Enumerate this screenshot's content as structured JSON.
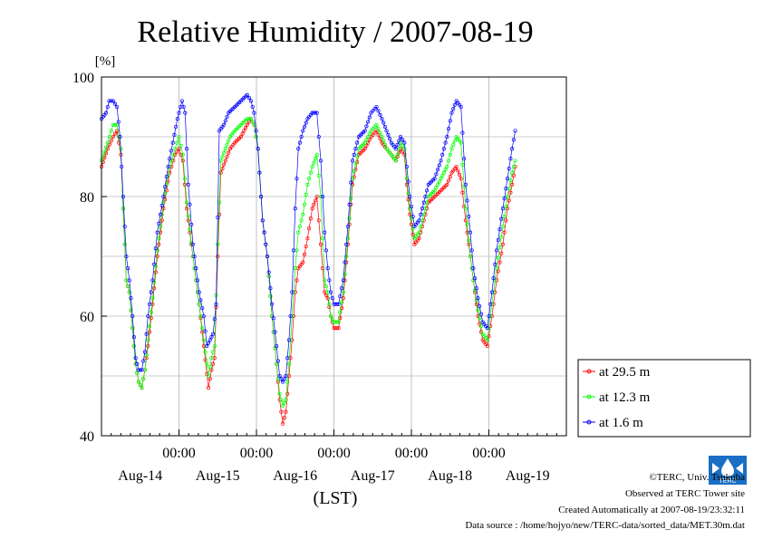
{
  "chart_data": {
    "type": "line",
    "title": "Relative Humidity / 2007-08-19",
    "ylabel": "[%]",
    "xlabel": "(LST)",
    "ylim": [
      40,
      100
    ],
    "yticks": [
      40,
      60,
      80,
      100
    ],
    "xlim": [
      0,
      6
    ],
    "xunit": "days from start of Aug-14 (LST)",
    "x_time_ticks": [
      {
        "x": 1,
        "label": "00:00"
      },
      {
        "x": 2,
        "label": "00:00"
      },
      {
        "x": 3,
        "label": "00:00"
      },
      {
        "x": 4,
        "label": "00:00"
      },
      {
        "x": 5,
        "label": "00:00"
      }
    ],
    "x_day_labels": [
      {
        "x": 0.5,
        "label": "Aug-14"
      },
      {
        "x": 1.5,
        "label": "Aug-15"
      },
      {
        "x": 2.5,
        "label": "Aug-16"
      },
      {
        "x": 3.5,
        "label": "Aug-17"
      },
      {
        "x": 4.5,
        "label": "Aug-18"
      },
      {
        "x": 5.5,
        "label": "Aug-19"
      }
    ],
    "grid": true,
    "legend_position": "right",
    "series": [
      {
        "name": "at 29.5 m",
        "color": "#ff0000",
        "points": [
          [
            0.0,
            85
          ],
          [
            0.08,
            88
          ],
          [
            0.15,
            90
          ],
          [
            0.2,
            91
          ],
          [
            0.25,
            87
          ],
          [
            0.28,
            78
          ],
          [
            0.32,
            66
          ],
          [
            0.36,
            64
          ],
          [
            0.4,
            58
          ],
          [
            0.44,
            52
          ],
          [
            0.48,
            49
          ],
          [
            0.52,
            48
          ],
          [
            0.56,
            51
          ],
          [
            0.6,
            55
          ],
          [
            0.66,
            62
          ],
          [
            0.72,
            70
          ],
          [
            0.8,
            78
          ],
          [
            0.88,
            84
          ],
          [
            0.95,
            87
          ],
          [
            1.0,
            88
          ],
          [
            1.05,
            86
          ],
          [
            1.1,
            78
          ],
          [
            1.18,
            70
          ],
          [
            1.26,
            62
          ],
          [
            1.32,
            55
          ],
          [
            1.38,
            48
          ],
          [
            1.42,
            51
          ],
          [
            1.46,
            53
          ],
          [
            1.5,
            70
          ],
          [
            1.54,
            84
          ],
          [
            1.6,
            86
          ],
          [
            1.66,
            88
          ],
          [
            1.72,
            89
          ],
          [
            1.8,
            90
          ],
          [
            1.88,
            92
          ],
          [
            1.93,
            93
          ],
          [
            1.97,
            92
          ],
          [
            2.02,
            88
          ],
          [
            2.08,
            76
          ],
          [
            2.14,
            70
          ],
          [
            2.2,
            60
          ],
          [
            2.26,
            52
          ],
          [
            2.3,
            46
          ],
          [
            2.34,
            42
          ],
          [
            2.38,
            44
          ],
          [
            2.42,
            50
          ],
          [
            2.46,
            56
          ],
          [
            2.5,
            64
          ],
          [
            2.54,
            68
          ],
          [
            2.6,
            69
          ],
          [
            2.66,
            73
          ],
          [
            2.72,
            78
          ],
          [
            2.78,
            80
          ],
          [
            2.83,
            72
          ],
          [
            2.88,
            64
          ],
          [
            2.92,
            63
          ],
          [
            2.96,
            60
          ],
          [
            3.0,
            58
          ],
          [
            3.06,
            58
          ],
          [
            3.12,
            63
          ],
          [
            3.18,
            72
          ],
          [
            3.24,
            82
          ],
          [
            3.32,
            87
          ],
          [
            3.4,
            88
          ],
          [
            3.48,
            90
          ],
          [
            3.55,
            91
          ],
          [
            3.62,
            89
          ],
          [
            3.68,
            88
          ],
          [
            3.74,
            87
          ],
          [
            3.8,
            86
          ],
          [
            3.86,
            88
          ],
          [
            3.91,
            87
          ],
          [
            3.94,
            82
          ],
          [
            3.98,
            77
          ],
          [
            4.04,
            72
          ],
          [
            4.1,
            73
          ],
          [
            4.16,
            76
          ],
          [
            4.22,
            79
          ],
          [
            4.3,
            80
          ],
          [
            4.38,
            81
          ],
          [
            4.46,
            82
          ],
          [
            4.52,
            84
          ],
          [
            4.58,
            85
          ],
          [
            4.64,
            83
          ],
          [
            4.7,
            76
          ],
          [
            4.76,
            70
          ],
          [
            4.8,
            66
          ],
          [
            4.86,
            60
          ],
          [
            4.92,
            56
          ],
          [
            4.98,
            55
          ],
          [
            5.04,
            60
          ],
          [
            5.1,
            66
          ],
          [
            5.18,
            72
          ],
          [
            5.24,
            78
          ],
          [
            5.3,
            82
          ],
          [
            5.34,
            85
          ]
        ]
      },
      {
        "name": "at 12.3 m",
        "color": "#00ff00",
        "points": [
          [
            0.0,
            86
          ],
          [
            0.08,
            89
          ],
          [
            0.15,
            92
          ],
          [
            0.2,
            92
          ],
          [
            0.25,
            88
          ],
          [
            0.28,
            78
          ],
          [
            0.32,
            66
          ],
          [
            0.36,
            64
          ],
          [
            0.4,
            58
          ],
          [
            0.44,
            52
          ],
          [
            0.48,
            49
          ],
          [
            0.52,
            48
          ],
          [
            0.56,
            51
          ],
          [
            0.6,
            56
          ],
          [
            0.66,
            63
          ],
          [
            0.72,
            71
          ],
          [
            0.8,
            79
          ],
          [
            0.88,
            85
          ],
          [
            0.95,
            88
          ],
          [
            1.0,
            90
          ],
          [
            1.05,
            87
          ],
          [
            1.1,
            79
          ],
          [
            1.18,
            70
          ],
          [
            1.26,
            62
          ],
          [
            1.32,
            56
          ],
          [
            1.38,
            50
          ],
          [
            1.42,
            53
          ],
          [
            1.46,
            55
          ],
          [
            1.5,
            72
          ],
          [
            1.54,
            86
          ],
          [
            1.6,
            88
          ],
          [
            1.66,
            90
          ],
          [
            1.72,
            91
          ],
          [
            1.8,
            92
          ],
          [
            1.88,
            93
          ],
          [
            1.93,
            93
          ],
          [
            1.97,
            92
          ],
          [
            2.02,
            88
          ],
          [
            2.08,
            76
          ],
          [
            2.14,
            70
          ],
          [
            2.2,
            60
          ],
          [
            2.26,
            52
          ],
          [
            2.3,
            47
          ],
          [
            2.34,
            45
          ],
          [
            2.38,
            46
          ],
          [
            2.42,
            52
          ],
          [
            2.46,
            60
          ],
          [
            2.5,
            68
          ],
          [
            2.54,
            74
          ],
          [
            2.6,
            77
          ],
          [
            2.66,
            82
          ],
          [
            2.72,
            85
          ],
          [
            2.78,
            87
          ],
          [
            2.83,
            80
          ],
          [
            2.88,
            66
          ],
          [
            2.92,
            64
          ],
          [
            2.96,
            60
          ],
          [
            3.0,
            59
          ],
          [
            3.06,
            59
          ],
          [
            3.12,
            64
          ],
          [
            3.18,
            73
          ],
          [
            3.24,
            83
          ],
          [
            3.32,
            88
          ],
          [
            3.4,
            89
          ],
          [
            3.48,
            91
          ],
          [
            3.55,
            92
          ],
          [
            3.62,
            90
          ],
          [
            3.68,
            88
          ],
          [
            3.74,
            87
          ],
          [
            3.8,
            86
          ],
          [
            3.86,
            89
          ],
          [
            3.91,
            88
          ],
          [
            3.94,
            83
          ],
          [
            3.98,
            78
          ],
          [
            4.04,
            73
          ],
          [
            4.1,
            74
          ],
          [
            4.16,
            77
          ],
          [
            4.22,
            80
          ],
          [
            4.3,
            81
          ],
          [
            4.38,
            83
          ],
          [
            4.46,
            85
          ],
          [
            4.52,
            88
          ],
          [
            4.58,
            90
          ],
          [
            4.64,
            89
          ],
          [
            4.7,
            78
          ],
          [
            4.76,
            70
          ],
          [
            4.8,
            66
          ],
          [
            4.86,
            61
          ],
          [
            4.92,
            57
          ],
          [
            4.98,
            56
          ],
          [
            5.04,
            62
          ],
          [
            5.1,
            68
          ],
          [
            5.18,
            75
          ],
          [
            5.24,
            80
          ],
          [
            5.3,
            84
          ],
          [
            5.34,
            86
          ]
        ]
      },
      {
        "name": "at 1.6 m",
        "color": "#0000ff",
        "points": [
          [
            0.0,
            93
          ],
          [
            0.06,
            94
          ],
          [
            0.1,
            96
          ],
          [
            0.15,
            96
          ],
          [
            0.2,
            95
          ],
          [
            0.24,
            90
          ],
          [
            0.28,
            80
          ],
          [
            0.32,
            70
          ],
          [
            0.36,
            66
          ],
          [
            0.4,
            60
          ],
          [
            0.44,
            53
          ],
          [
            0.48,
            51
          ],
          [
            0.52,
            51
          ],
          [
            0.56,
            54
          ],
          [
            0.6,
            60
          ],
          [
            0.66,
            66
          ],
          [
            0.72,
            74
          ],
          [
            0.8,
            80
          ],
          [
            0.86,
            85
          ],
          [
            0.92,
            89
          ],
          [
            0.98,
            93
          ],
          [
            1.04,
            96
          ],
          [
            1.08,
            94
          ],
          [
            1.12,
            82
          ],
          [
            1.18,
            72
          ],
          [
            1.26,
            64
          ],
          [
            1.32,
            60
          ],
          [
            1.36,
            55
          ],
          [
            1.4,
            56
          ],
          [
            1.44,
            57
          ],
          [
            1.48,
            62
          ],
          [
            1.52,
            91
          ],
          [
            1.58,
            92
          ],
          [
            1.64,
            94
          ],
          [
            1.72,
            95
          ],
          [
            1.8,
            96
          ],
          [
            1.88,
            97
          ],
          [
            1.93,
            96
          ],
          [
            1.97,
            94
          ],
          [
            2.02,
            88
          ],
          [
            2.08,
            76
          ],
          [
            2.14,
            70
          ],
          [
            2.2,
            62
          ],
          [
            2.26,
            55
          ],
          [
            2.3,
            50
          ],
          [
            2.34,
            49
          ],
          [
            2.38,
            50
          ],
          [
            2.42,
            56
          ],
          [
            2.46,
            64
          ],
          [
            2.5,
            78
          ],
          [
            2.54,
            88
          ],
          [
            2.6,
            91
          ],
          [
            2.66,
            93
          ],
          [
            2.72,
            94
          ],
          [
            2.78,
            94
          ],
          [
            2.83,
            86
          ],
          [
            2.88,
            74
          ],
          [
            2.92,
            68
          ],
          [
            2.96,
            64
          ],
          [
            3.0,
            62
          ],
          [
            3.06,
            62
          ],
          [
            3.12,
            66
          ],
          [
            3.18,
            75
          ],
          [
            3.24,
            86
          ],
          [
            3.32,
            90
          ],
          [
            3.4,
            91
          ],
          [
            3.48,
            94
          ],
          [
            3.55,
            95
          ],
          [
            3.62,
            93
          ],
          [
            3.68,
            91
          ],
          [
            3.74,
            89
          ],
          [
            3.8,
            88
          ],
          [
            3.86,
            90
          ],
          [
            3.91,
            89
          ],
          [
            3.94,
            85
          ],
          [
            3.98,
            80
          ],
          [
            4.04,
            75
          ],
          [
            4.1,
            76
          ],
          [
            4.16,
            79
          ],
          [
            4.22,
            82
          ],
          [
            4.3,
            83
          ],
          [
            4.38,
            86
          ],
          [
            4.46,
            90
          ],
          [
            4.52,
            94
          ],
          [
            4.58,
            96
          ],
          [
            4.64,
            95
          ],
          [
            4.7,
            82
          ],
          [
            4.76,
            74
          ],
          [
            4.8,
            68
          ],
          [
            4.86,
            63
          ],
          [
            4.92,
            59
          ],
          [
            4.98,
            58
          ],
          [
            5.04,
            64
          ],
          [
            5.1,
            71
          ],
          [
            5.18,
            78
          ],
          [
            5.24,
            83
          ],
          [
            5.3,
            88
          ],
          [
            5.34,
            91
          ]
        ]
      }
    ]
  },
  "footer": {
    "copyright": "©TERC, Univ. Tsukuba",
    "site": "Observed at TERC Tower site",
    "created": "Created Automatically at 2007-08-19/23:32:11",
    "source": "Data source : /home/hojyo/new/TERC-data/sorted_data/MET.30m.dat",
    "logo_text": "TERC"
  }
}
